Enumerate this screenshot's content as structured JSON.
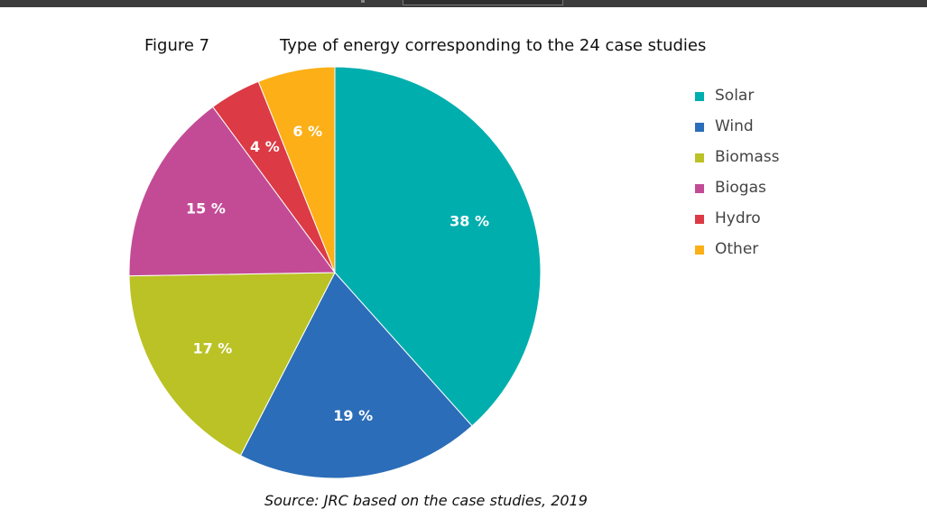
{
  "figure_label": "Figure 7",
  "source": "Source: JRC based on the case studies, 2019",
  "chart_data": {
    "type": "pie",
    "title": "Type of energy corresponding to the 24 case studies",
    "legend_position": "right",
    "slices": [
      {
        "name": "Solar",
        "value": 38,
        "label": "38 %",
        "color": "#00AEAE"
      },
      {
        "name": "Wind",
        "value": 19,
        "label": "19 %",
        "color": "#2B6DB8"
      },
      {
        "name": "Biomass",
        "value": 17,
        "label": "17 %",
        "color": "#BAC225"
      },
      {
        "name": "Biogas",
        "value": 15,
        "label": "15 %",
        "color": "#C34B96"
      },
      {
        "name": "Hydro",
        "value": 4,
        "label": "4 %",
        "color": "#DC3A45"
      },
      {
        "name": "Other",
        "value": 6,
        "label": "6 %",
        "color": "#FCAF17"
      }
    ]
  }
}
